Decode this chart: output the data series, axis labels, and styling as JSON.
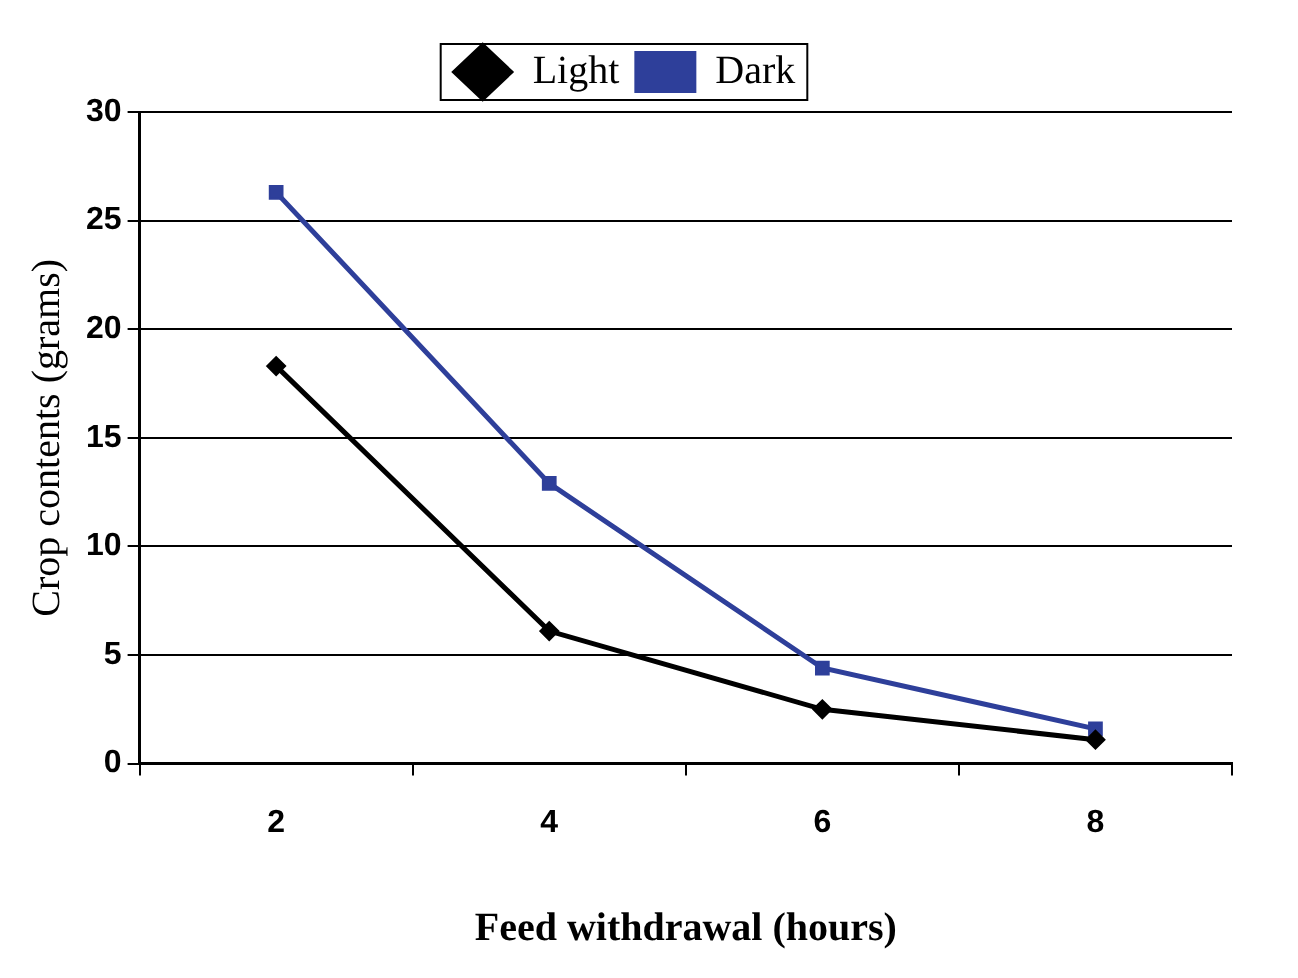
{
  "chart_data": {
    "type": "line",
    "xlabel": "Feed withdrawal (hours)",
    "ylabel": "Crop contents (grams)",
    "categories": [
      "2",
      "4",
      "6",
      "8"
    ],
    "series": [
      {
        "name": "Light",
        "color": "#000000",
        "marker": "diamond",
        "values": [
          18.3,
          6.1,
          2.5,
          1.1
        ]
      },
      {
        "name": "Dark",
        "color": "#2e3f9a",
        "marker": "square",
        "values": [
          26.3,
          12.9,
          4.4,
          1.6
        ]
      }
    ],
    "ylim": [
      0,
      30
    ],
    "yticks": [
      0,
      5,
      10,
      15,
      20,
      25,
      30
    ],
    "grid": "y",
    "legend": "top"
  }
}
